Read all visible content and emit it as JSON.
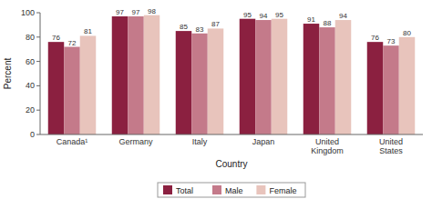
{
  "chart_data": {
    "type": "bar",
    "x_label": "Country",
    "y_label": "Percent",
    "categories": [
      "Canada¹",
      "Germany",
      "Italy",
      "Japan",
      "United\nKingdom",
      "United\nStates"
    ],
    "series": [
      {
        "name": "Total",
        "color": "#8B2040",
        "values": [
          76,
          97,
          85,
          95,
          91,
          76
        ]
      },
      {
        "name": "Male",
        "color": "#C47A8A",
        "values": [
          72,
          97,
          83,
          94,
          88,
          73
        ]
      },
      {
        "name": "Female",
        "color": "#E8C4BC",
        "values": [
          81,
          98,
          87,
          95,
          94,
          80
        ]
      }
    ],
    "ylim": [
      0,
      100
    ],
    "yticks": [
      0,
      20,
      40,
      60,
      80,
      100
    ],
    "grid": false,
    "data_labels": true,
    "legend": "bottom"
  }
}
